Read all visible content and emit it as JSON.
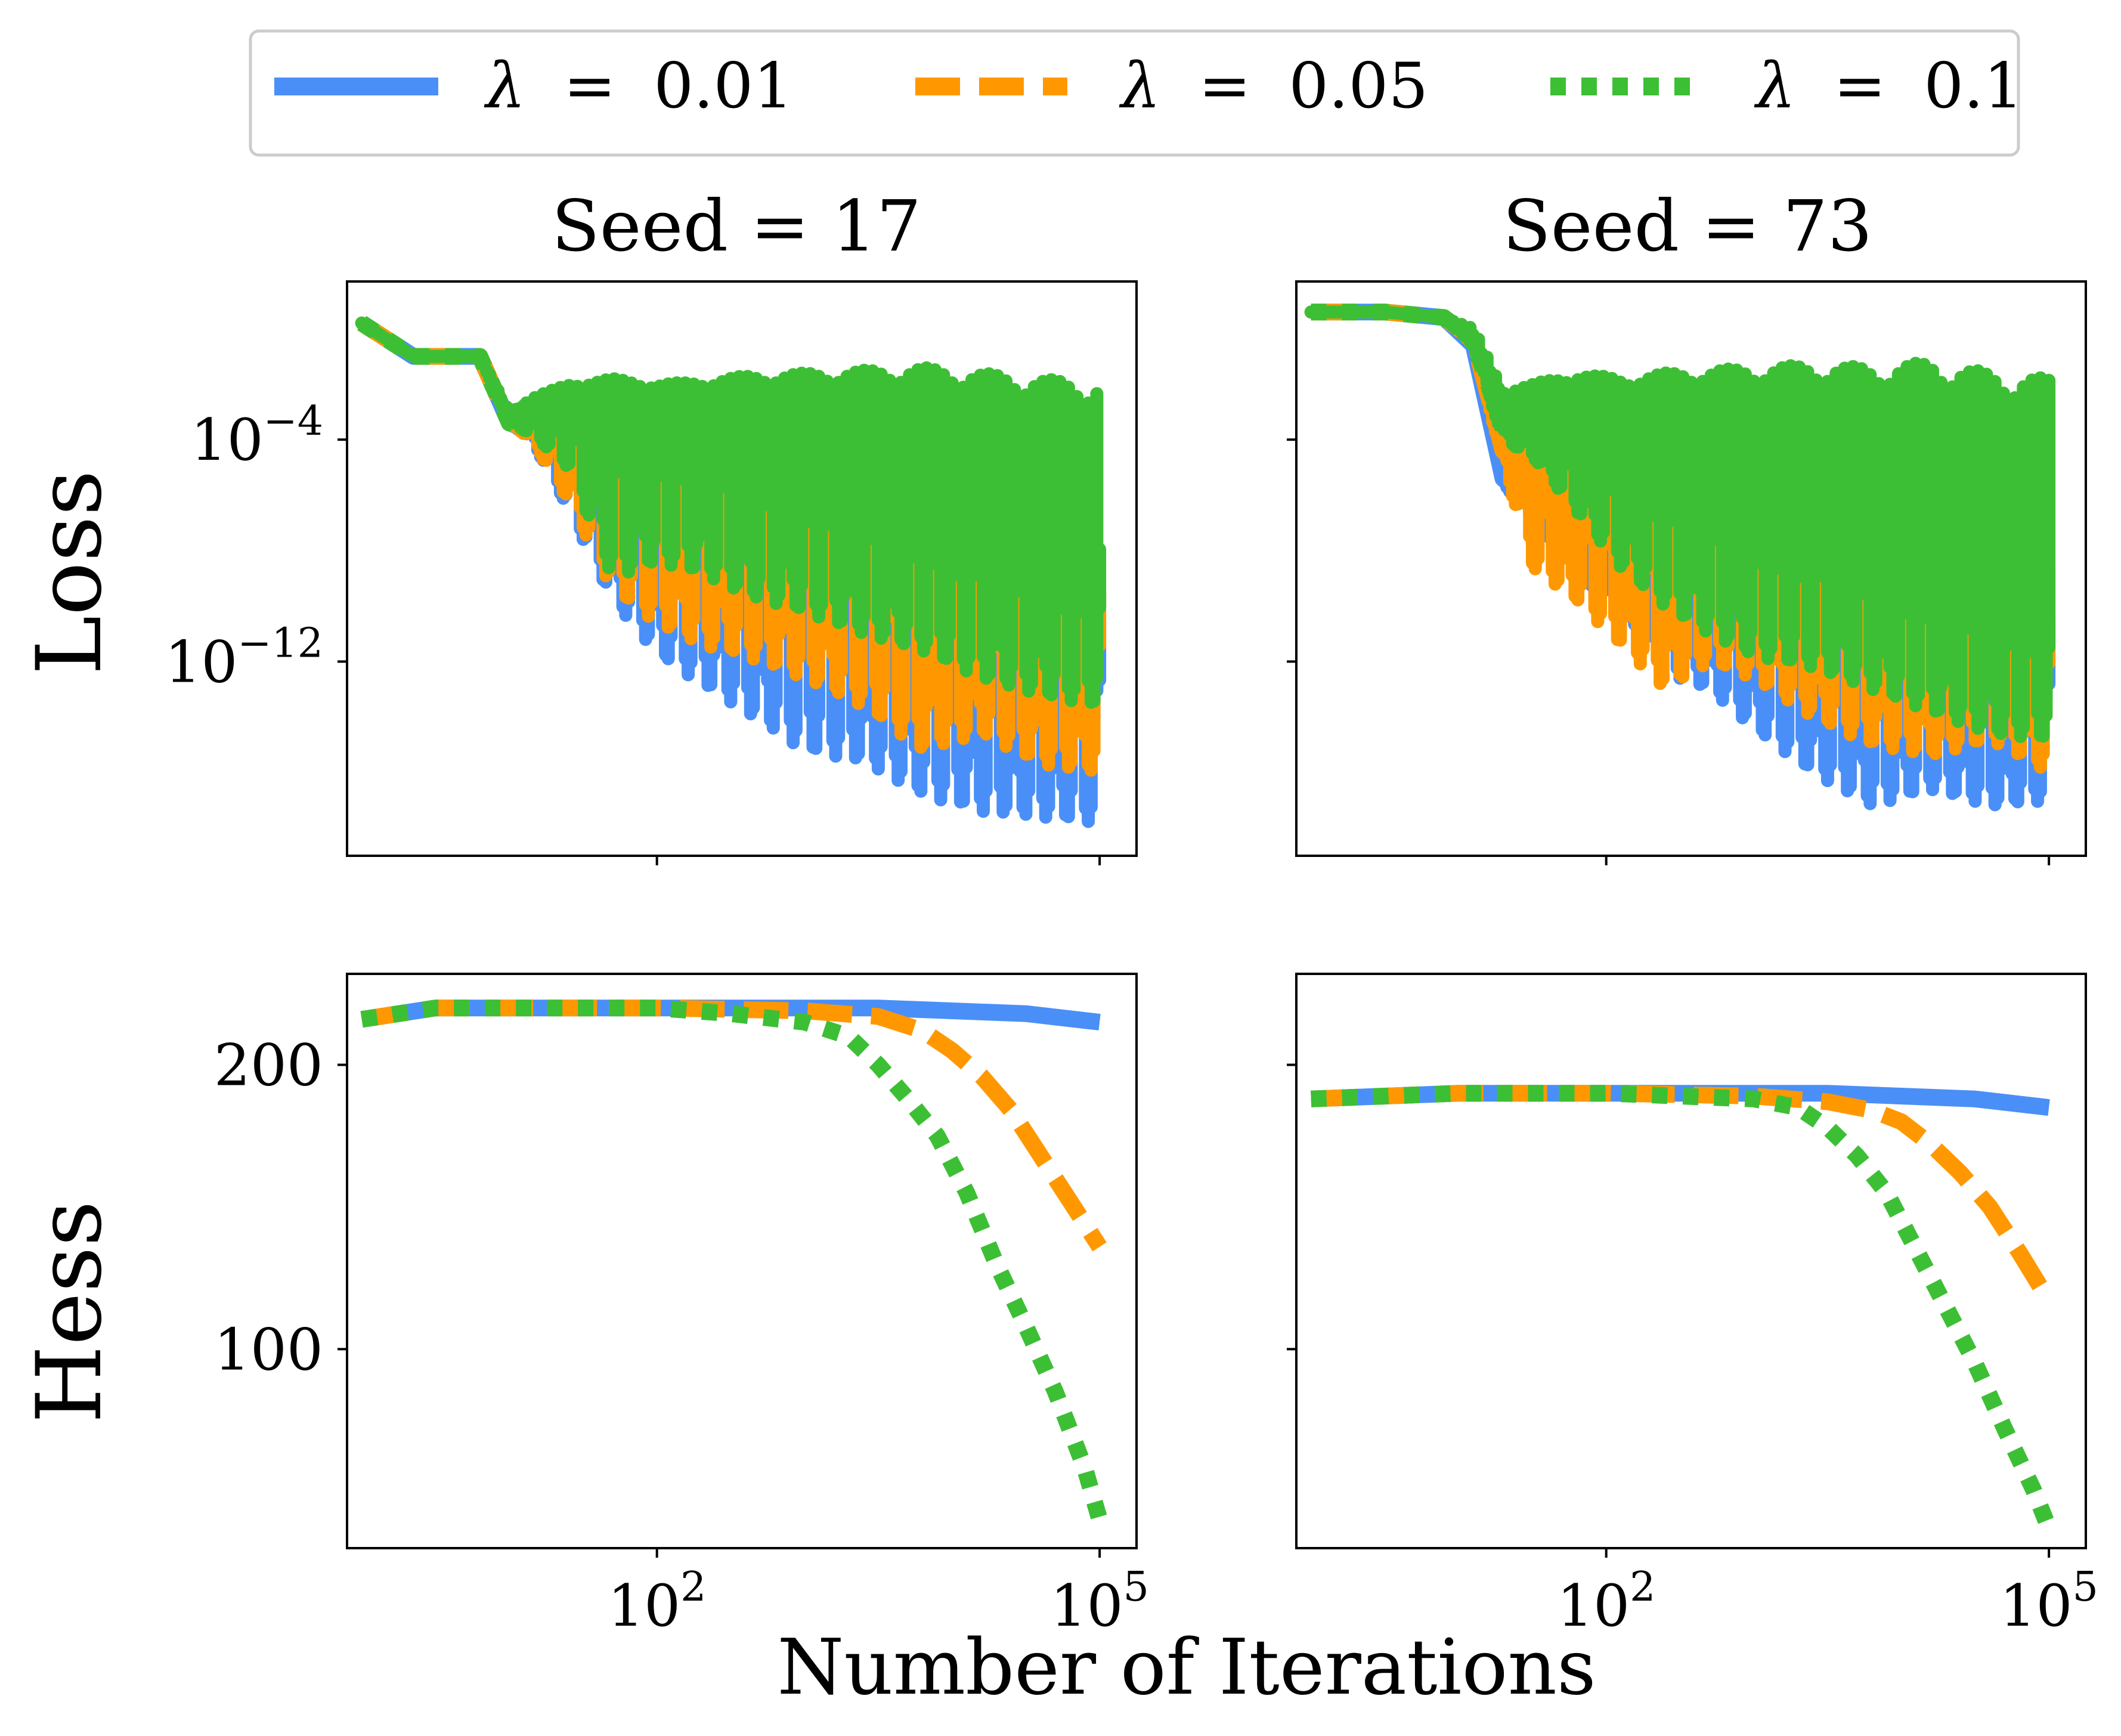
{
  "colors": {
    "lambda_001": "#4a8ff7",
    "lambda_005": "#ff9800",
    "lambda_01": "#3dbf35",
    "axis": "#000000",
    "legend_border": "#cccccc"
  },
  "legend": {
    "items": [
      {
        "symbol": "λ",
        "eq": "=",
        "value": "0.01",
        "style": "solid",
        "color_key": "lambda_001"
      },
      {
        "symbol": "λ",
        "eq": "=",
        "value": "0.05",
        "style": "dashed",
        "color_key": "lambda_005"
      },
      {
        "symbol": "λ",
        "eq": "=",
        "value": "0.1",
        "style": "dotted",
        "color_key": "lambda_01"
      }
    ]
  },
  "xlabel": "Number of Iterations",
  "row_labels": {
    "loss": "Loss",
    "hess": "Hess"
  },
  "chart_data": [
    {
      "type": "line",
      "panel": "top-left",
      "title": "Seed = 17",
      "ylabel": "Loss",
      "xscale": "log",
      "yscale": "log",
      "xlim_log10": [
        -0.1,
        5.25
      ],
      "ylim_log10": [
        -19.0,
        1.7
      ],
      "x_ticks": [
        {
          "base": "10",
          "exp": "2",
          "log10": 2
        },
        {
          "base": "10",
          "exp": "5",
          "log10": 5
        }
      ],
      "y_ticks": [
        {
          "base": "10",
          "exp": "−4",
          "log10": -4
        },
        {
          "base": "10",
          "exp": "−12",
          "log10": -12
        }
      ],
      "show_x_tick_labels": false,
      "series": [
        {
          "name": "λ = 0.01",
          "color_key": "lambda_001",
          "style": "solid",
          "x_log10": [
            0,
            0.35,
            0.8,
            1.0,
            1.15,
            1.4,
            1.7,
            2.0,
            2.3,
            2.6,
            3.0,
            3.4,
            3.8,
            4.2,
            4.6,
            5.0
          ],
          "y_log10": [
            0.2,
            -1.0,
            -1.0,
            -3.4,
            -3.7,
            -4.6,
            -5.6,
            -6.5,
            -6.8,
            -7.3,
            -8.0,
            -9.0,
            -9.7,
            -10.6,
            -11.6,
            -12.3
          ],
          "y_low_log10": [
            0.2,
            -1.0,
            -1.0,
            -3.4,
            -4.0,
            -6.5,
            -9.8,
            -11.7,
            -12.8,
            -13.8,
            -15.2,
            -15.6,
            -16.8,
            -17.4,
            -17.6,
            -17.8
          ],
          "y_high_log10": [
            0.2,
            -1.0,
            -1.0,
            -3.4,
            -3.4,
            -3.5,
            -3.6,
            -4.2,
            -4.8,
            -5.3,
            -6.0,
            -6.8,
            -7.4,
            -8.2,
            -9.0,
            -9.6
          ]
        },
        {
          "name": "λ = 0.05",
          "color_key": "lambda_005",
          "style": "dashed",
          "x_log10": [
            0,
            0.35,
            0.8,
            1.0,
            1.15,
            1.4,
            1.7,
            2.0,
            2.3,
            2.6,
            3.0,
            3.4,
            3.8,
            4.2,
            4.6,
            5.0
          ],
          "y_log10": [
            0.2,
            -1.0,
            -1.0,
            -3.4,
            -3.6,
            -4.2,
            -4.8,
            -5.4,
            -5.8,
            -6.2,
            -7.0,
            -8.0,
            -8.6,
            -9.6,
            -10.4,
            -11.0
          ],
          "y_low_log10": [
            0.2,
            -1.0,
            -1.0,
            -3.4,
            -4.0,
            -6.2,
            -9.4,
            -10.6,
            -11.4,
            -11.8,
            -12.6,
            -13.6,
            -15.2,
            -14.6,
            -15.7,
            -16.0
          ],
          "y_high_log10": [
            0.2,
            -1.0,
            -1.0,
            -3.2,
            -2.9,
            -2.8,
            -3.0,
            -3.2,
            -3.6,
            -4.0,
            -4.6,
            -5.4,
            -6.0,
            -6.8,
            -7.6,
            -8.0
          ]
        },
        {
          "name": "λ = 0.1",
          "color_key": "lambda_01",
          "style": "dotted",
          "x_log10": [
            0,
            0.35,
            0.8,
            1.0,
            1.15,
            1.4,
            1.7,
            2.0,
            2.3,
            2.6,
            3.0,
            3.4,
            3.8,
            4.2,
            4.6,
            5.0
          ],
          "y_log10": [
            0.2,
            -1.0,
            -1.0,
            -3.4,
            -3.3,
            -3.2,
            -3.6,
            -3.8,
            -4.0,
            -4.6,
            -5.2,
            -6.0,
            -6.8,
            -7.4,
            -8.2,
            -9.0
          ],
          "y_low_log10": [
            0.2,
            -1.0,
            -1.0,
            -3.4,
            -3.8,
            -5.0,
            -9.0,
            -8.4,
            -8.8,
            -9.6,
            -10.2,
            -11.0,
            -11.6,
            -12.6,
            -13.2,
            -13.6
          ],
          "y_high_log10": [
            0.2,
            -1.0,
            -1.0,
            -3.0,
            -2.5,
            -2.0,
            -1.8,
            -2.0,
            -1.9,
            -1.7,
            -1.6,
            -1.5,
            -1.4,
            -1.6,
            -1.8,
            -2.0
          ]
        }
      ]
    },
    {
      "type": "line",
      "panel": "top-right",
      "title": "Seed = 73",
      "ylabel": "",
      "xscale": "log",
      "yscale": "log",
      "xlim_log10": [
        -0.1,
        5.25
      ],
      "ylim_log10": [
        -19.0,
        1.7
      ],
      "x_ticks": [
        {
          "base": "10",
          "exp": "2",
          "log10": 2
        },
        {
          "base": "10",
          "exp": "5",
          "log10": 5
        }
      ],
      "y_ticks": [
        {
          "base": "10",
          "exp": "−4",
          "log10": -4
        },
        {
          "base": "10",
          "exp": "−12",
          "log10": -12
        }
      ],
      "show_x_tick_labels": false,
      "show_y_tick_labels": false,
      "series": [
        {
          "name": "λ = 0.01",
          "color_key": "lambda_001",
          "style": "solid",
          "x_log10": [
            0,
            0.5,
            0.9,
            1.1,
            1.3,
            1.5,
            1.8,
            2.1,
            2.4,
            2.7,
            3.0,
            3.4,
            3.8,
            4.2,
            4.6,
            5.0
          ],
          "y_log10": [
            0.6,
            0.6,
            0.4,
            -0.6,
            -5.4,
            -6.4,
            -7.0,
            -7.4,
            -8.2,
            -9.0,
            -9.6,
            -10.6,
            -11.2,
            -11.8,
            -12.4,
            -12.6
          ],
          "y_low_log10": [
            0.6,
            0.6,
            0.4,
            -0.6,
            -5.6,
            -6.8,
            -9.2,
            -10.4,
            -12.4,
            -13.0,
            -14.4,
            -16.0,
            -17.2,
            -16.6,
            -17.2,
            -17.0
          ],
          "y_high_log10": [
            0.6,
            0.6,
            0.4,
            -0.4,
            -3.2,
            -3.6,
            -4.0,
            -4.6,
            -5.2,
            -5.8,
            -6.4,
            -7.2,
            -8.0,
            -8.8,
            -9.4,
            -9.8
          ]
        },
        {
          "name": "λ = 0.05",
          "color_key": "lambda_005",
          "style": "dashed",
          "x_log10": [
            0,
            0.5,
            0.9,
            1.1,
            1.3,
            1.5,
            1.8,
            2.1,
            2.4,
            2.7,
            3.0,
            3.4,
            3.8,
            4.2,
            4.6,
            5.0
          ],
          "y_log10": [
            0.6,
            0.6,
            0.4,
            -0.4,
            -4.4,
            -5.4,
            -6.0,
            -6.6,
            -7.2,
            -7.8,
            -8.4,
            -9.2,
            -10.0,
            -10.8,
            -11.2,
            -11.6
          ],
          "y_low_log10": [
            0.6,
            0.6,
            0.4,
            -0.6,
            -4.8,
            -8.6,
            -9.8,
            -11.4,
            -13.0,
            -12.0,
            -12.6,
            -14.0,
            -15.0,
            -15.4,
            -14.8,
            -16.0
          ],
          "y_high_log10": [
            0.6,
            0.6,
            0.4,
            -0.2,
            -3.0,
            -3.0,
            -3.2,
            -3.6,
            -4.2,
            -4.8,
            -5.4,
            -6.0,
            -6.8,
            -7.6,
            -8.2,
            -8.4
          ]
        },
        {
          "name": "λ = 0.1",
          "color_key": "lambda_01",
          "style": "dotted",
          "x_log10": [
            0,
            0.5,
            0.9,
            1.1,
            1.3,
            1.5,
            1.8,
            2.1,
            2.4,
            2.7,
            3.0,
            3.4,
            3.8,
            4.2,
            4.6,
            5.0
          ],
          "y_log10": [
            0.6,
            0.6,
            0.4,
            -0.4,
            -3.6,
            -4.0,
            -4.4,
            -4.8,
            -5.4,
            -6.0,
            -6.8,
            -7.4,
            -8.2,
            -9.0,
            -9.6,
            -10.4
          ],
          "y_low_log10": [
            0.6,
            0.6,
            0.4,
            -0.6,
            -4.0,
            -4.6,
            -6.6,
            -8.6,
            -10.0,
            -11.0,
            -11.8,
            -12.2,
            -13.0,
            -13.8,
            -14.6,
            -14.8
          ],
          "y_high_log10": [
            0.6,
            0.6,
            0.4,
            0.0,
            -2.2,
            -2.0,
            -1.6,
            -1.8,
            -1.6,
            -1.5,
            -1.4,
            -1.3,
            -1.4,
            -1.2,
            -1.6,
            -1.8
          ]
        }
      ]
    },
    {
      "type": "line",
      "panel": "bottom-left",
      "title": "",
      "ylabel": "Hess",
      "xscale": "log",
      "yscale": "linear",
      "xlim_log10": [
        -0.1,
        5.25
      ],
      "ylim": [
        30,
        232
      ],
      "x_ticks": [
        {
          "base": "10",
          "exp": "2",
          "log10": 2
        },
        {
          "base": "10",
          "exp": "5",
          "log10": 5
        }
      ],
      "y_ticks": [
        {
          "label": "200",
          "value": 200
        },
        {
          "label": "100",
          "value": 100
        }
      ],
      "series": [
        {
          "name": "λ = 0.01",
          "color_key": "lambda_001",
          "style": "solid",
          "x_log10": [
            0,
            0.5,
            1.0,
            2.0,
            3.0,
            3.5,
            4.0,
            4.5,
            5.0
          ],
          "y": [
            216,
            220,
            220,
            220,
            220,
            220,
            219,
            218,
            215
          ]
        },
        {
          "name": "λ = 0.05",
          "color_key": "lambda_005",
          "style": "dashed",
          "x_log10": [
            0,
            0.5,
            1.0,
            2.0,
            3.0,
            3.5,
            3.8,
            4.0,
            4.2,
            4.4,
            4.6,
            4.8,
            5.0
          ],
          "y": [
            216,
            220,
            220,
            220,
            219,
            217,
            212,
            205,
            196,
            184,
            168,
            152,
            136
          ]
        },
        {
          "name": "λ = 0.1",
          "color_key": "lambda_01",
          "style": "dotted",
          "x_log10": [
            0,
            0.5,
            1.0,
            2.0,
            2.5,
            3.0,
            3.3,
            3.5,
            3.7,
            3.9,
            4.1,
            4.3,
            4.5,
            4.7,
            4.9,
            5.0
          ],
          "y": [
            216,
            220,
            220,
            220,
            218,
            215,
            210,
            200,
            188,
            175,
            155,
            130,
            108,
            85,
            58,
            40
          ]
        }
      ]
    },
    {
      "type": "line",
      "panel": "bottom-right",
      "title": "",
      "ylabel": "",
      "xscale": "log",
      "yscale": "linear",
      "xlim_log10": [
        -0.1,
        5.25
      ],
      "ylim": [
        30,
        232
      ],
      "x_ticks": [
        {
          "base": "10",
          "exp": "2",
          "log10": 2
        },
        {
          "base": "10",
          "exp": "5",
          "log10": 5
        }
      ],
      "y_ticks": [
        {
          "label": "200",
          "value": 200
        },
        {
          "label": "100",
          "value": 100
        }
      ],
      "show_y_tick_labels": false,
      "series": [
        {
          "name": "λ = 0.01",
          "color_key": "lambda_001",
          "style": "solid",
          "x_log10": [
            0,
            0.5,
            1.0,
            2.0,
            3.0,
            3.5,
            4.0,
            4.5,
            5.0
          ],
          "y": [
            188,
            189,
            190,
            190,
            190,
            190,
            189,
            188,
            185
          ]
        },
        {
          "name": "λ = 0.05",
          "color_key": "lambda_005",
          "style": "dashed",
          "x_log10": [
            0,
            0.5,
            1.0,
            2.0,
            3.0,
            3.5,
            3.8,
            4.0,
            4.2,
            4.4,
            4.6,
            4.8,
            5.0
          ],
          "y": [
            188,
            189,
            190,
            190,
            189,
            187,
            184,
            180,
            172,
            162,
            150,
            134,
            117
          ]
        },
        {
          "name": "λ = 0.1",
          "color_key": "lambda_01",
          "style": "dotted",
          "x_log10": [
            0,
            0.5,
            1.0,
            2.0,
            2.5,
            3.0,
            3.3,
            3.5,
            3.7,
            3.9,
            4.1,
            4.3,
            4.5,
            4.7,
            4.9,
            5.0
          ],
          "y": [
            188,
            189,
            190,
            190,
            189,
            188,
            185,
            178,
            168,
            155,
            135,
            115,
            95,
            72,
            50,
            37
          ]
        }
      ]
    }
  ]
}
